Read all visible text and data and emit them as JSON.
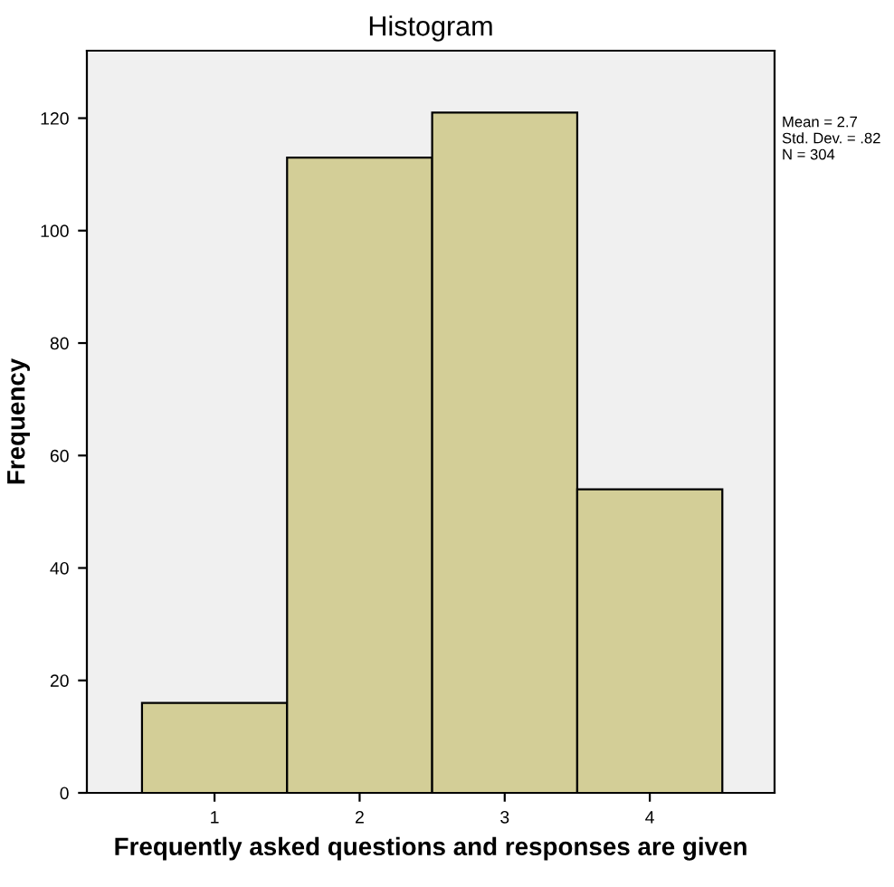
{
  "chart_data": {
    "type": "histogram",
    "title": "Histogram",
    "xlabel": "Frequently asked questions and responses are given",
    "ylabel": "Frequency",
    "bins": [
      0.5,
      1.5,
      2.5,
      3.5,
      4.5
    ],
    "values": [
      16,
      113,
      121,
      54
    ],
    "color": "#d3ce97",
    "xlim": [
      0.12,
      4.86
    ],
    "xticks": [
      1,
      2,
      3,
      4
    ],
    "ylim": [
      0,
      132
    ],
    "yticks": [
      0,
      20,
      40,
      60,
      80,
      100,
      120
    ],
    "grid": false,
    "annotations": [
      "Mean = 2.7",
      "Std. Dev. = .82",
      "N = 304"
    ]
  }
}
